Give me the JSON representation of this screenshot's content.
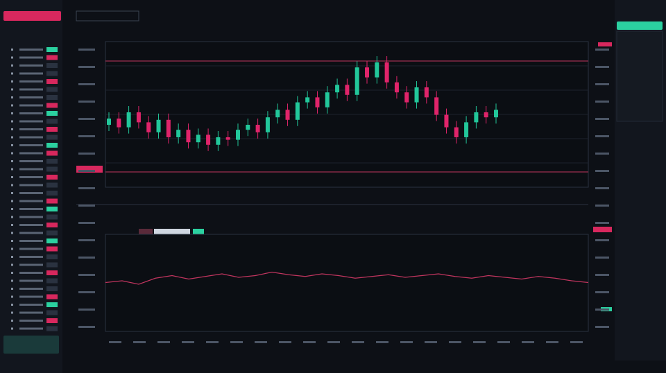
{
  "price_chart": {
    "ylim": [
      0,
      100
    ],
    "up_color": "#22c79a",
    "down_color": "#e0246a",
    "open": [
      40,
      45,
      38,
      50,
      42,
      34,
      44,
      30,
      36,
      26,
      32,
      24,
      30,
      28,
      36,
      40,
      34,
      46,
      52,
      44,
      58,
      62,
      54,
      66,
      72,
      64,
      86,
      78,
      90,
      74,
      66,
      58,
      70,
      62,
      48,
      38,
      30,
      42,
      50,
      46
    ],
    "high": [
      50,
      50,
      55,
      55,
      47,
      49,
      49,
      41,
      41,
      37,
      37,
      35,
      35,
      41,
      45,
      45,
      51,
      57,
      57,
      63,
      67,
      67,
      71,
      77,
      77,
      91,
      91,
      95,
      95,
      79,
      71,
      75,
      75,
      67,
      53,
      43,
      47,
      55,
      55,
      57
    ],
    "low": [
      35,
      33,
      33,
      37,
      29,
      29,
      25,
      25,
      21,
      21,
      19,
      19,
      23,
      23,
      31,
      29,
      29,
      41,
      39,
      39,
      53,
      49,
      49,
      61,
      59,
      59,
      73,
      73,
      69,
      61,
      53,
      53,
      57,
      43,
      33,
      25,
      25,
      37,
      41,
      41
    ],
    "close": [
      45,
      38,
      50,
      42,
      34,
      44,
      30,
      36,
      26,
      32,
      24,
      30,
      28,
      36,
      40,
      34,
      46,
      52,
      44,
      58,
      62,
      54,
      66,
      72,
      64,
      86,
      78,
      90,
      74,
      66,
      58,
      70,
      62,
      48,
      38,
      30,
      42,
      50,
      46,
      52
    ]
  },
  "lower_chart": {
    "ylim": [
      0,
      100
    ],
    "color": "#c2355f",
    "values": [
      50,
      52,
      48,
      55,
      58,
      54,
      57,
      60,
      56,
      58,
      62,
      59,
      57,
      60,
      58,
      55,
      57,
      59,
      56,
      58,
      60,
      57,
      55,
      58,
      56,
      54,
      57,
      55,
      52,
      50
    ]
  }
}
